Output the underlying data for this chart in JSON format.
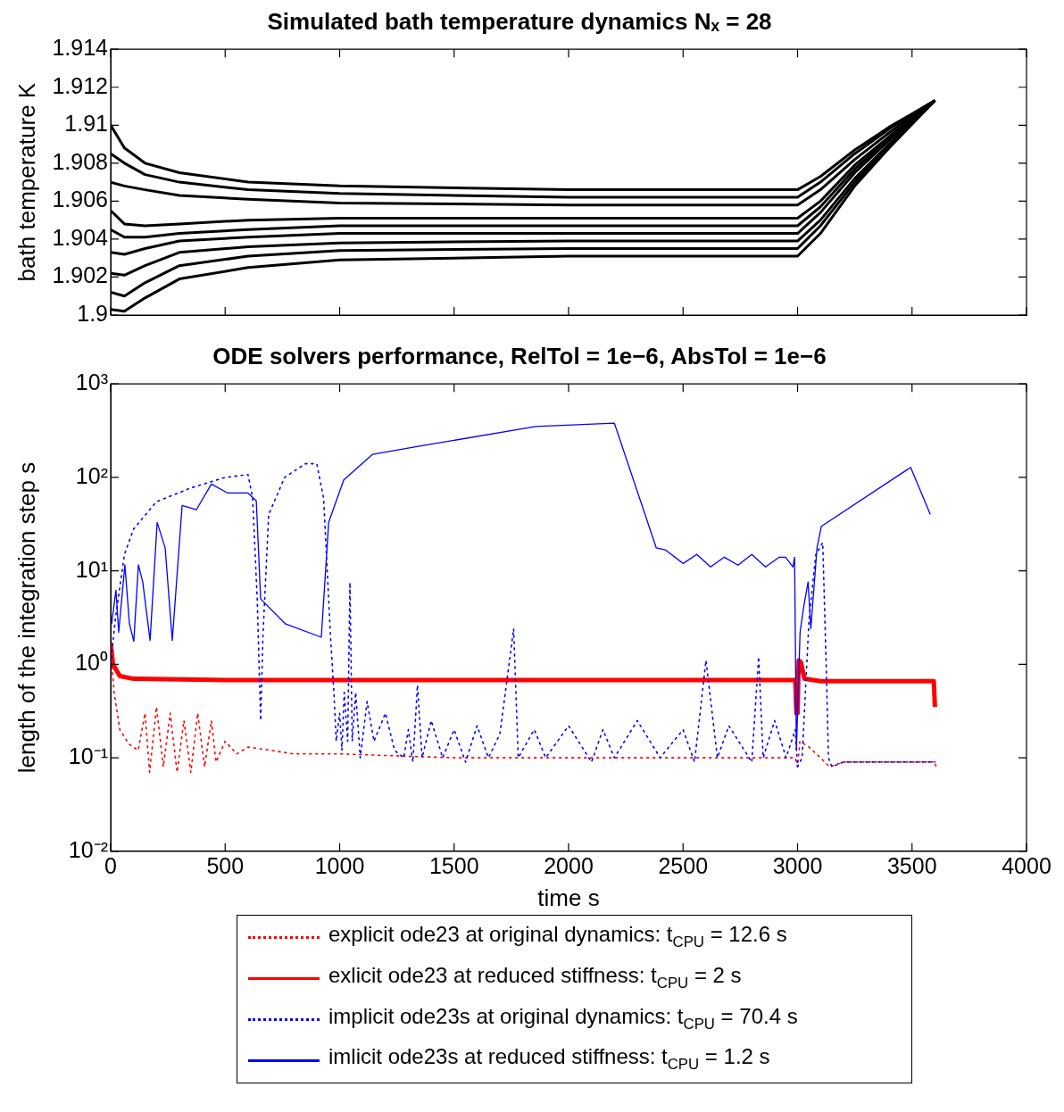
{
  "chart_data": [
    {
      "type": "line",
      "title": "Simulated bath temperature dynamics Nₓ = 28",
      "ylabel": "bath temperature K",
      "xlim": [
        0,
        4000
      ],
      "xticks": [
        0,
        500,
        1000,
        1500,
        2000,
        2500,
        3000,
        3500,
        4000
      ],
      "ylim": [
        1.9,
        1.914
      ],
      "yticks": [
        1.9,
        1.902,
        1.904,
        1.906,
        1.908,
        1.91,
        1.912,
        1.914
      ],
      "tick_labels": "y",
      "grid": false,
      "legend": false,
      "marker": "none",
      "line_style": "solid",
      "x": [
        0,
        60,
        150,
        300,
        600,
        1000,
        2000,
        3000,
        3100,
        3250,
        3400,
        3600
      ],
      "series": [
        {
          "color": "#000000",
          "values": [
            1.91,
            1.9088,
            1.908,
            1.9075,
            1.907,
            1.9068,
            1.9066,
            1.9066,
            1.9073,
            1.9087,
            1.9099,
            1.9113
          ]
        },
        {
          "color": "#000000",
          "values": [
            1.9085,
            1.908,
            1.9074,
            1.907,
            1.9066,
            1.9064,
            1.9062,
            1.9062,
            1.907,
            1.9085,
            1.9098,
            1.9113
          ]
        },
        {
          "color": "#000000",
          "values": [
            1.907,
            1.9068,
            1.9066,
            1.9063,
            1.9061,
            1.9059,
            1.9058,
            1.9058,
            1.9066,
            1.9082,
            1.9096,
            1.9113
          ]
        },
        {
          "color": "#000000",
          "values": [
            1.9055,
            1.9048,
            1.9047,
            1.9048,
            1.905,
            1.9051,
            1.9051,
            1.9051,
            1.906,
            1.9079,
            1.9094,
            1.9113
          ]
        },
        {
          "color": "#000000",
          "values": [
            1.9045,
            1.9041,
            1.9041,
            1.9043,
            1.9045,
            1.9047,
            1.9047,
            1.9047,
            1.9057,
            1.9077,
            1.9093,
            1.9113
          ]
        },
        {
          "color": "#000000",
          "values": [
            1.9033,
            1.9032,
            1.9035,
            1.9039,
            1.9041,
            1.9043,
            1.9043,
            1.9043,
            1.9054,
            1.9075,
            1.9092,
            1.9113
          ]
        },
        {
          "color": "#000000",
          "values": [
            1.9022,
            1.9021,
            1.9026,
            1.9033,
            1.9036,
            1.9038,
            1.9039,
            1.9039,
            1.905,
            1.9072,
            1.909,
            1.9113
          ]
        },
        {
          "color": "#000000",
          "values": [
            1.9012,
            1.901,
            1.9017,
            1.9026,
            1.9031,
            1.9034,
            1.9035,
            1.9035,
            1.9047,
            1.907,
            1.9089,
            1.9113
          ]
        },
        {
          "color": "#000000",
          "values": [
            1.9003,
            1.9002,
            1.9009,
            1.9019,
            1.9025,
            1.9029,
            1.9031,
            1.9031,
            1.9043,
            1.9068,
            1.9088,
            1.9113
          ]
        }
      ]
    },
    {
      "type": "line",
      "title": "ODE solvers performance, RelTol = 1e−6, AbsTol = 1e−6",
      "xlabel": "time s",
      "ylabel": "length of the integration step s",
      "log": "y",
      "xlim": [
        0,
        4000
      ],
      "xticks": [
        0,
        500,
        1000,
        1500,
        2000,
        2500,
        3000,
        3500,
        4000
      ],
      "ylim": [
        0.01,
        1000
      ],
      "yticks": [
        {
          "value": 0.01,
          "label": "10⁻²"
        },
        {
          "value": 0.1,
          "label": "10⁻¹"
        },
        {
          "value": 1,
          "label": "10⁰"
        },
        {
          "value": 10,
          "label": "10¹"
        },
        {
          "value": 100,
          "label": "10²"
        },
        {
          "value": 1000,
          "label": "10³"
        }
      ],
      "grid": false,
      "legend": "bottom",
      "marker": "none",
      "series": [
        {
          "name": "explicit ode23 at original dynamics: t$_{CPU}$ = 12.6 s",
          "color": "#ff0000",
          "line_style": "dotted",
          "x": [
            0,
            15,
            40,
            80,
            120,
            150,
            170,
            200,
            230,
            260,
            290,
            320,
            350,
            380,
            410,
            440,
            460,
            500,
            550,
            600,
            700,
            800,
            1000,
            1500,
            2000,
            2500,
            2990,
            3000,
            3010,
            3050,
            3100,
            3140,
            3200,
            3600,
            3605
          ],
          "values": [
            1.5,
            0.5,
            0.2,
            0.14,
            0.12,
            0.3,
            0.07,
            0.35,
            0.08,
            0.3,
            0.07,
            0.25,
            0.07,
            0.3,
            0.08,
            0.25,
            0.09,
            0.15,
            0.11,
            0.13,
            0.12,
            0.11,
            0.11,
            0.1,
            0.1,
            0.1,
            0.1,
            0.08,
            0.15,
            0.13,
            0.1,
            0.08,
            0.09,
            0.09,
            0.08
          ]
        },
        {
          "name": "exlicit ode23 at reduced stiffness: t$_{CPU}$ = 2 s",
          "color": "#ff0000",
          "line_style": "solid",
          "x": [
            0,
            10,
            40,
            100,
            500,
            1000,
            2000,
            2990,
            2995,
            3000,
            3005,
            3015,
            3030,
            3100,
            3595,
            3600
          ],
          "values": [
            1.7,
            1.0,
            0.75,
            0.7,
            0.68,
            0.68,
            0.68,
            0.68,
            0.3,
            0.3,
            1.1,
            1.05,
            0.7,
            0.66,
            0.66,
            0.35
          ]
        },
        {
          "name": "implicit ode23s at original dynamics: t$_{CPU}$ = 70.4 s",
          "color": "#0000ff",
          "line_style": "dotted",
          "x": [
            0,
            20,
            60,
            100,
            200,
            350,
            500,
            600,
            620,
            640,
            655,
            665,
            690,
            760,
            850,
            900,
            930,
            960,
            975,
            985,
            1000,
            1010,
            1020,
            1035,
            1045,
            1055,
            1070,
            1090,
            1120,
            1150,
            1200,
            1240,
            1280,
            1300,
            1320,
            1340,
            1360,
            1400,
            1450,
            1500,
            1550,
            1600,
            1650,
            1700,
            1760,
            1780,
            1850,
            1900,
            2000,
            2100,
            2150,
            2200,
            2300,
            2400,
            2500,
            2550,
            2600,
            2650,
            2700,
            2800,
            2830,
            2850,
            2900,
            2950,
            2990,
            3000,
            3020,
            3050,
            3080,
            3110,
            3125,
            3135,
            3150,
            3200,
            3300,
            3400,
            3500,
            3600
          ],
          "values": [
            1,
            3,
            15,
            28,
            55,
            77,
            100,
            107,
            60,
            5,
            0.25,
            2,
            40,
            100,
            140,
            140,
            60,
            2,
            0.5,
            0.15,
            0.3,
            0.12,
            0.5,
            0.15,
            7.5,
            0.15,
            0.5,
            0.1,
            0.4,
            0.15,
            0.3,
            0.12,
            0.1,
            0.2,
            0.09,
            0.6,
            0.1,
            0.25,
            0.1,
            0.2,
            0.09,
            0.22,
            0.1,
            0.18,
            2.4,
            0.1,
            0.2,
            0.1,
            0.22,
            0.09,
            0.2,
            0.1,
            0.25,
            0.1,
            0.2,
            0.09,
            1.1,
            0.1,
            0.22,
            0.09,
            1.2,
            0.1,
            0.25,
            0.1,
            0.2,
            0.08,
            0.1,
            3,
            15,
            20,
            1,
            0.1,
            0.08,
            0.09,
            0.09,
            0.09,
            0.09,
            0.09
          ]
        },
        {
          "name": "imlicit ode23s at reduced stiffness: t$_{CPU}$ = 1.2 s",
          "color": "#0000ff",
          "line_style": "solid",
          "x": [
            4,
            23,
            35,
            62,
            82,
            101,
            121,
            140,
            172,
            203,
            238,
            269,
            312,
            374,
            440,
            511,
            600,
            636,
            655,
            764,
            920,
            952,
            1018,
            1143,
            1349,
            1856,
            2200,
            2383,
            2422,
            2500,
            2560,
            2620,
            2680,
            2740,
            2800,
            2860,
            2920,
            2948,
            2980,
            2987,
            2995,
            3011,
            3026,
            3046,
            3058,
            3085,
            3104,
            3494,
            3580
          ],
          "values": [
            2.7,
            6.2,
            2.2,
            11.6,
            2.7,
            1.76,
            11.6,
            7.6,
            1.8,
            33,
            17.6,
            1.8,
            50,
            45,
            85,
            68,
            68,
            56,
            5,
            2.7,
            1.95,
            33,
            94,
            176,
            216,
            350,
            380,
            17.6,
            16.8,
            12,
            15,
            11,
            14,
            11.5,
            15,
            11,
            14,
            14,
            11,
            14,
            0.12,
            2.2,
            4,
            7.6,
            2.4,
            17.6,
            30,
            128,
            40
          ]
        }
      ]
    }
  ]
}
